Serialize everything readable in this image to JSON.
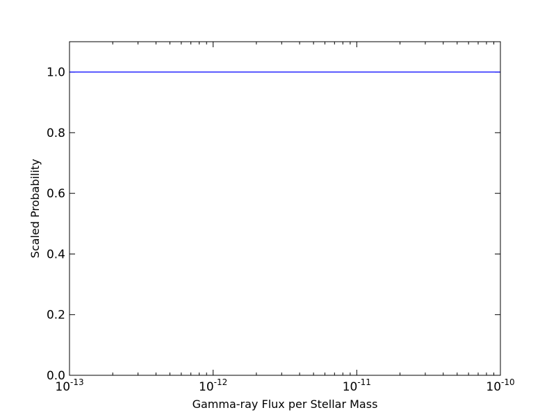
{
  "chart_data": {
    "type": "line",
    "title": "",
    "xlabel": "Gamma-ray Flux per Stellar Mass",
    "ylabel": "Scaled Probability",
    "xscale": "log",
    "xlim": [
      1e-13,
      1e-10
    ],
    "ylim": [
      0.0,
      1.1
    ],
    "grid": false,
    "legend": "none",
    "x_ticks": [
      {
        "value": 1e-13,
        "base": "10",
        "exponent": "-13"
      },
      {
        "value": 1e-12,
        "base": "10",
        "exponent": "-12"
      },
      {
        "value": 1e-11,
        "base": "10",
        "exponent": "-11"
      },
      {
        "value": 1e-10,
        "base": "10",
        "exponent": "-10"
      }
    ],
    "y_ticks": [
      {
        "value": 0.0,
        "label": "0.0"
      },
      {
        "value": 0.2,
        "label": "0.2"
      },
      {
        "value": 0.4,
        "label": "0.4"
      },
      {
        "value": 0.6,
        "label": "0.6"
      },
      {
        "value": 0.8,
        "label": "0.8"
      },
      {
        "value": 1.0,
        "label": "1.0"
      }
    ],
    "series": [
      {
        "color": "#0000ff",
        "x": [
          1e-13,
          1e-12,
          1e-11,
          1e-10
        ],
        "y": [
          1.0,
          1.0,
          1.0,
          1.0
        ]
      }
    ]
  }
}
